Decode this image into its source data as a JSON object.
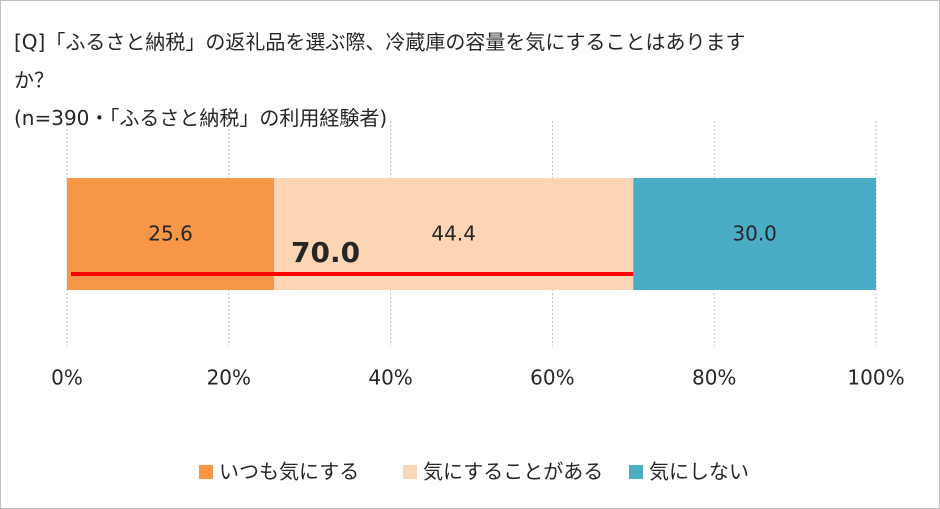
{
  "chart_data": {
    "type": "stacked-bar-horizontal",
    "title": "[Q]「ふるさと納税」の返礼品を選ぶ際、冷蔵庫の容量を気にすることはありますか？",
    "subtitle": "(n=390・「ふるさと納税」の利用経験者)",
    "series": [
      {
        "name": "いつも気にする",
        "color": "#f79646",
        "values": [
          25.6
        ],
        "value_labels": [
          "25.6"
        ]
      },
      {
        "name": "気にすることがある",
        "color": "#fcd5b5",
        "values": [
          44.4
        ],
        "value_labels": [
          "44.4"
        ]
      },
      {
        "name": "気にしない",
        "color": "#4bacc6",
        "values": [
          30.0
        ],
        "value_labels": [
          "30.0"
        ]
      }
    ],
    "xlim": [
      0,
      100
    ],
    "xticks": [
      {
        "value": 0,
        "label": "0%"
      },
      {
        "value": 20,
        "label": "20%"
      },
      {
        "value": 40,
        "label": "40%"
      },
      {
        "value": 60,
        "label": "60%"
      },
      {
        "value": 80,
        "label": "80%"
      },
      {
        "value": 100,
        "label": "100%"
      }
    ],
    "grid": true,
    "legend": "bottom",
    "annotation": {
      "value": 70,
      "label": "70.0",
      "color": "#ff0000"
    }
  }
}
